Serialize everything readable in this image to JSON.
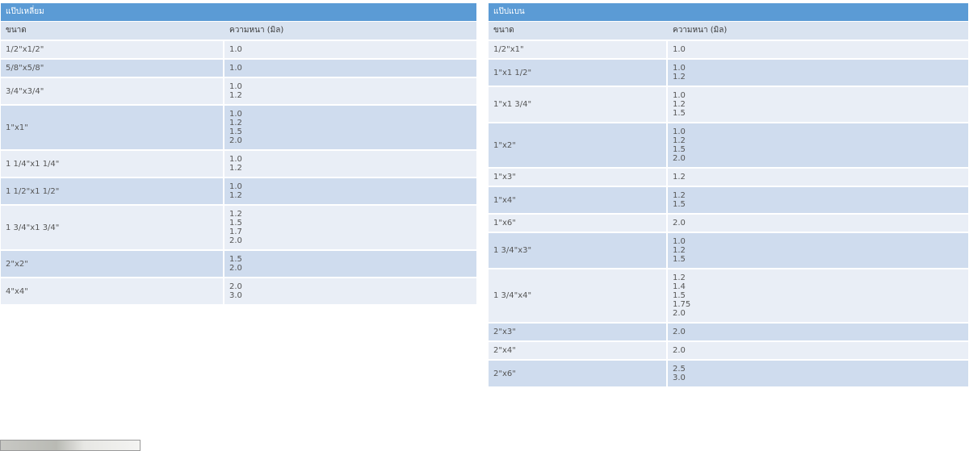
{
  "left_table": {
    "title": "แป๊ปเหลี่ยม",
    "col_size": "ขนาด",
    "col_thickness": "ความหนา (มิล)",
    "rows": [
      {
        "size": "1/2\"x1/2\"",
        "thickness": [
          "1.0"
        ]
      },
      {
        "size": "5/8\"x5/8\"",
        "thickness": [
          "1.0"
        ]
      },
      {
        "size": "3/4\"x3/4\"",
        "thickness": [
          "1.0",
          "1.2"
        ]
      },
      {
        "size": "1\"x1\"",
        "thickness": [
          "1.0",
          "1.2",
          "1.5",
          "2.0"
        ]
      },
      {
        "size": "1 1/4\"x1 1/4\"",
        "thickness": [
          "1.0",
          "1.2"
        ]
      },
      {
        "size": "1 1/2\"x1 1/2\"",
        "thickness": [
          "1.0",
          "1.2"
        ]
      },
      {
        "size": "1 3/4\"x1 3/4\"",
        "thickness": [
          "1.2",
          "1.5",
          "1.7",
          "2.0"
        ]
      },
      {
        "size": "2\"x2\"",
        "thickness": [
          "1.5",
          "2.0"
        ]
      },
      {
        "size": "4\"x4\"",
        "thickness": [
          "2.0",
          "3.0"
        ]
      }
    ]
  },
  "right_table": {
    "title": "แป๊ปแบน",
    "col_size": "ขนาด",
    "col_thickness": "ความหนา (มิล)",
    "rows": [
      {
        "size": "1/2\"x1\"",
        "thickness": [
          "1.0"
        ]
      },
      {
        "size": "1\"x1 1/2\"",
        "thickness": [
          "1.0",
          "1.2"
        ]
      },
      {
        "size": "1\"x1 3/4\"",
        "thickness": [
          "1.0",
          "1.2",
          "1.5"
        ]
      },
      {
        "size": "1\"x2\"",
        "thickness": [
          "1.0",
          "1.2",
          "1.5",
          "2.0"
        ]
      },
      {
        "size": "1\"x3\"",
        "thickness": [
          "1.2"
        ]
      },
      {
        "size": "1\"x4\"",
        "thickness": [
          "1.2",
          "1.5"
        ]
      },
      {
        "size": "1\"x6\"",
        "thickness": [
          "2.0"
        ]
      },
      {
        "size": "1 3/4\"x3\"",
        "thickness": [
          "1.0",
          "1.2",
          "1.5"
        ]
      },
      {
        "size": "1 3/4\"x4\"",
        "thickness": [
          "1.2",
          "1.4",
          "1.5",
          "1.75",
          "2.0"
        ]
      },
      {
        "size": "2\"x3\"",
        "thickness": [
          "2.0"
        ]
      },
      {
        "size": "2\"x4\"",
        "thickness": [
          "2.0"
        ]
      },
      {
        "size": "2\"x6\"",
        "thickness": [
          "2.5",
          "3.0"
        ]
      }
    ]
  },
  "colors": {
    "title_bar": "#5b9bd5",
    "header_row": "#d9e3f0",
    "row_light": "#e9eef6",
    "row_dark": "#cfdcee"
  }
}
